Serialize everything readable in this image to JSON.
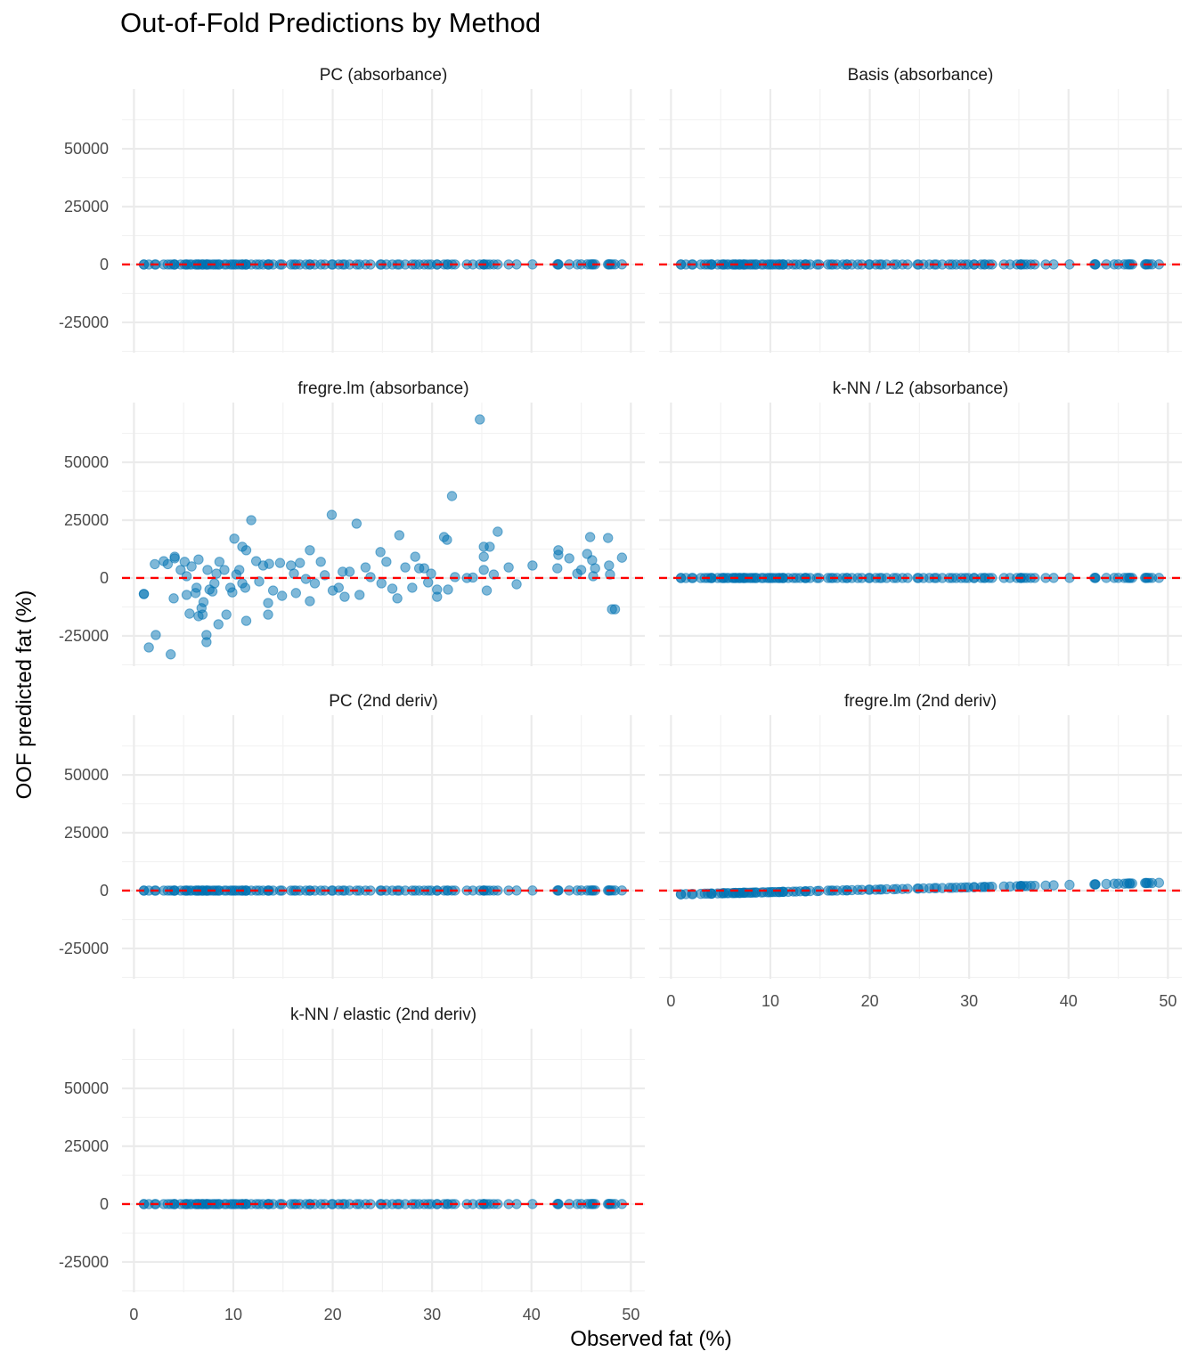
{
  "chart_data": {
    "type": "scatter",
    "title": "Out-of-Fold Predictions by Method",
    "xlabel": "Observed fat (%)",
    "ylabel": "OOF predicted fat (%)",
    "xlim": [
      -1.2,
      51.4
    ],
    "ylim": [
      -38100,
      75800
    ],
    "x_ticks": [
      0,
      10,
      20,
      30,
      40,
      50
    ],
    "y_ticks": [
      -25000,
      0,
      25000,
      50000
    ],
    "y_tick_labels": [
      "-25000",
      "0",
      "25000",
      "50000"
    ],
    "x_tick_labels": [
      "0",
      "10",
      "20",
      "30",
      "40",
      "50"
    ],
    "grid": true,
    "reference_line": {
      "y": 0,
      "color": "#FF0000",
      "style": "dashed"
    },
    "point_color": "#0072B2",
    "observed": [
      1.0,
      1.0,
      1.5,
      2.2,
      3.7,
      2.1,
      3.0,
      3.4,
      4.1,
      4.1,
      4.0,
      4.7,
      5.1,
      5.3,
      5.3,
      5.6,
      5.8,
      6.2,
      6.5,
      6.3,
      6.5,
      6.8,
      6.9,
      7.0,
      7.3,
      7.3,
      7.4,
      7.6,
      7.9,
      8.1,
      8.3,
      8.5,
      8.6,
      9.1,
      9.3,
      9.7,
      9.9,
      10.1,
      10.3,
      10.6,
      10.9,
      11.3,
      11.3,
      10.9,
      11.2,
      11.8,
      12.3,
      12.6,
      13.0,
      13.5,
      13.5,
      13.6,
      14.0,
      14.7,
      14.9,
      15.8,
      16.1,
      16.3,
      16.7,
      17.3,
      17.7,
      17.7,
      18.2,
      18.8,
      19.2,
      19.9,
      20.0,
      20.6,
      21.0,
      21.2,
      21.7,
      22.4,
      22.7,
      23.3,
      23.8,
      24.8,
      24.9,
      25.4,
      26.0,
      26.5,
      26.7,
      27.3,
      28.0,
      28.3,
      28.7,
      29.2,
      29.6,
      29.9,
      30.5,
      30.5,
      31.2,
      31.5,
      31.6,
      32.0,
      32.3,
      33.5,
      34.1,
      34.8,
      35.2,
      35.2,
      35.2,
      35.5,
      35.8,
      36.2,
      36.6,
      37.7,
      38.5,
      40.1,
      42.6,
      42.7,
      42.7,
      43.8,
      44.6,
      45.0,
      45.6,
      45.9,
      46.1,
      46.4,
      46.2,
      47.7,
      47.8,
      47.9,
      48.1,
      48.4,
      49.1
    ],
    "panels": [
      {
        "name": "PC (absorbance)",
        "predicted": [
          1.0,
          1.0,
          1.5,
          2.2,
          3.7,
          2.1,
          3.0,
          3.4,
          4.1,
          4.1,
          4.0,
          4.7,
          5.1,
          5.3,
          5.3,
          5.6,
          5.8,
          6.2,
          6.5,
          6.3,
          6.5,
          6.8,
          6.9,
          7.0,
          7.3,
          7.3,
          7.4,
          7.6,
          7.9,
          8.1,
          8.3,
          8.5,
          8.6,
          9.1,
          9.3,
          9.7,
          9.9,
          10.1,
          10.3,
          10.6,
          10.9,
          11.3,
          11.3,
          10.9,
          11.2,
          11.8,
          12.3,
          12.6,
          13.0,
          13.5,
          13.5,
          13.6,
          14.0,
          14.7,
          14.9,
          15.8,
          16.1,
          16.3,
          16.7,
          17.3,
          17.7,
          17.7,
          18.2,
          18.8,
          19.2,
          19.9,
          20.0,
          20.6,
          21.0,
          21.2,
          21.7,
          22.4,
          22.7,
          23.3,
          23.8,
          24.8,
          24.9,
          25.4,
          26.0,
          26.5,
          26.7,
          27.3,
          28.0,
          28.3,
          28.7,
          29.2,
          29.6,
          29.9,
          30.5,
          30.5,
          31.2,
          31.5,
          31.6,
          32.0,
          32.3,
          33.5,
          34.1,
          34.8,
          35.2,
          35.2,
          35.2,
          35.5,
          35.8,
          36.2,
          36.6,
          37.7,
          38.5,
          40.1,
          42.6,
          42.7,
          42.7,
          43.8,
          44.6,
          45.0,
          45.6,
          45.9,
          46.1,
          46.4,
          46.2,
          47.7,
          47.8,
          47.9,
          48.1,
          48.4,
          49.1
        ]
      },
      {
        "name": "Basis (absorbance)",
        "predicted": [
          1.0,
          1.0,
          1.5,
          2.2,
          3.7,
          2.1,
          3.0,
          3.4,
          4.1,
          4.1,
          4.0,
          4.7,
          5.1,
          5.3,
          5.3,
          5.6,
          5.8,
          6.2,
          6.5,
          6.3,
          6.5,
          6.8,
          6.9,
          7.0,
          7.3,
          7.3,
          7.4,
          7.6,
          7.9,
          8.1,
          8.3,
          8.5,
          8.6,
          9.1,
          9.3,
          9.7,
          9.9,
          10.1,
          10.3,
          10.6,
          10.9,
          11.3,
          11.3,
          10.9,
          11.2,
          11.8,
          12.3,
          12.6,
          13.0,
          13.5,
          13.5,
          13.6,
          14.0,
          14.7,
          14.9,
          15.8,
          16.1,
          16.3,
          16.7,
          17.3,
          17.7,
          17.7,
          18.2,
          18.8,
          19.2,
          19.9,
          20.0,
          20.6,
          21.0,
          21.2,
          21.7,
          22.4,
          22.7,
          23.3,
          23.8,
          24.8,
          24.9,
          25.4,
          26.0,
          26.5,
          26.7,
          27.3,
          28.0,
          28.3,
          28.7,
          29.2,
          29.6,
          29.9,
          30.5,
          30.5,
          31.2,
          31.5,
          31.6,
          32.0,
          32.3,
          33.5,
          34.1,
          34.8,
          35.2,
          35.2,
          35.2,
          35.5,
          35.8,
          36.2,
          36.6,
          37.7,
          38.5,
          40.1,
          42.6,
          42.7,
          42.7,
          43.8,
          44.6,
          45.0,
          45.6,
          45.9,
          46.1,
          46.4,
          46.2,
          47.7,
          47.8,
          47.9,
          48.1,
          48.4,
          49.1
        ]
      },
      {
        "name": "fregre.lm (absorbance)",
        "predicted": [
          -6900,
          -6900,
          -30000,
          -24600,
          -33000,
          6000,
          7300,
          6000,
          9200,
          8500,
          -8800,
          3500,
          7000,
          800,
          -7300,
          -15400,
          5000,
          -6500,
          -16500,
          -4200,
          8000,
          -13000,
          -15800,
          -10400,
          -24600,
          -27700,
          3500,
          -5000,
          -5800,
          -2300,
          1900,
          -20000,
          7000,
          3500,
          -15800,
          -4200,
          -6200,
          17000,
          1500,
          3500,
          13500,
          12000,
          -18500,
          -2300,
          -4200,
          25000,
          7300,
          -1500,
          5400,
          -15800,
          -10800,
          6100,
          -5400,
          6500,
          -7700,
          5400,
          1900,
          -6500,
          6500,
          -400,
          12000,
          -10000,
          -2300,
          7000,
          1200,
          27300,
          -5400,
          -4200,
          2700,
          -8100,
          2700,
          23500,
          -7300,
          4600,
          400,
          11200,
          -2300,
          7000,
          -4600,
          -8800,
          18500,
          4600,
          -4200,
          9200,
          4200,
          4200,
          -1900,
          1900,
          -5000,
          -8100,
          17700,
          16500,
          -5000,
          35400,
          400,
          0,
          200,
          68500,
          13500,
          9200,
          3500,
          -5400,
          13500,
          1500,
          20000,
          4600,
          -2700,
          5400,
          4200,
          12000,
          10000,
          8500,
          1900,
          3500,
          10400,
          17700,
          7700,
          4200,
          800,
          17300,
          5400,
          1500,
          -13500,
          -13500,
          8800
        ]
      },
      {
        "name": "k-NN / L2 (absorbance)",
        "predicted": [
          1.0,
          1.0,
          1.5,
          2.2,
          3.7,
          2.1,
          3.0,
          3.4,
          4.1,
          4.1,
          4.0,
          4.7,
          5.1,
          5.3,
          5.3,
          5.6,
          5.8,
          6.2,
          6.5,
          6.3,
          6.5,
          6.8,
          6.9,
          7.0,
          7.3,
          7.3,
          7.4,
          7.6,
          7.9,
          8.1,
          8.3,
          8.5,
          8.6,
          9.1,
          9.3,
          9.7,
          9.9,
          10.1,
          10.3,
          10.6,
          10.9,
          11.3,
          11.3,
          10.9,
          11.2,
          11.8,
          12.3,
          12.6,
          13.0,
          13.5,
          13.5,
          13.6,
          14.0,
          14.7,
          14.9,
          15.8,
          16.1,
          16.3,
          16.7,
          17.3,
          17.7,
          17.7,
          18.2,
          18.8,
          19.2,
          19.9,
          20.0,
          20.6,
          21.0,
          21.2,
          21.7,
          22.4,
          22.7,
          23.3,
          23.8,
          24.8,
          24.9,
          25.4,
          26.0,
          26.5,
          26.7,
          27.3,
          28.0,
          28.3,
          28.7,
          29.2,
          29.6,
          29.9,
          30.5,
          30.5,
          31.2,
          31.5,
          31.6,
          32.0,
          32.3,
          33.5,
          34.1,
          34.8,
          35.2,
          35.2,
          35.2,
          35.5,
          35.8,
          36.2,
          36.6,
          37.7,
          38.5,
          40.1,
          42.6,
          42.7,
          42.7,
          43.8,
          44.6,
          45.0,
          45.6,
          45.9,
          46.1,
          46.4,
          46.2,
          47.7,
          47.8,
          47.9,
          48.1,
          48.4,
          49.1
        ]
      },
      {
        "name": "PC (2nd deriv)",
        "predicted": [
          1.0,
          1.0,
          1.5,
          2.2,
          3.7,
          2.1,
          3.0,
          3.4,
          4.1,
          4.1,
          4.0,
          4.7,
          5.1,
          5.3,
          5.3,
          5.6,
          5.8,
          6.2,
          6.5,
          6.3,
          6.5,
          6.8,
          6.9,
          7.0,
          7.3,
          7.3,
          7.4,
          7.6,
          7.9,
          8.1,
          8.3,
          8.5,
          8.6,
          9.1,
          9.3,
          9.7,
          9.9,
          10.1,
          10.3,
          10.6,
          10.9,
          11.3,
          11.3,
          10.9,
          11.2,
          11.8,
          12.3,
          12.6,
          13.0,
          13.5,
          13.5,
          13.6,
          14.0,
          14.7,
          14.9,
          15.8,
          16.1,
          16.3,
          16.7,
          17.3,
          17.7,
          17.7,
          18.2,
          18.8,
          19.2,
          19.9,
          20.0,
          20.6,
          21.0,
          21.2,
          21.7,
          22.4,
          22.7,
          23.3,
          23.8,
          24.8,
          24.9,
          25.4,
          26.0,
          26.5,
          26.7,
          27.3,
          28.0,
          28.3,
          28.7,
          29.2,
          29.6,
          29.9,
          30.5,
          30.5,
          31.2,
          31.5,
          31.6,
          32.0,
          32.3,
          33.5,
          34.1,
          34.8,
          35.2,
          35.2,
          35.2,
          35.5,
          35.8,
          36.2,
          36.6,
          37.7,
          38.5,
          40.1,
          42.6,
          42.7,
          42.7,
          43.8,
          44.6,
          45.0,
          45.6,
          45.9,
          46.1,
          46.4,
          46.2,
          47.7,
          47.8,
          47.9,
          48.1,
          48.4,
          49.1
        ]
      },
      {
        "name": "fregre.lm (2nd deriv)",
        "predicted": [
          -1600,
          -1600,
          -1500,
          -1500,
          -1300,
          -1500,
          -1400,
          -1300,
          -1300,
          -1300,
          -1300,
          -1200,
          -1200,
          -1100,
          -1100,
          -1100,
          -1100,
          -1100,
          -1000,
          -1000,
          -1000,
          -1000,
          -1000,
          -1000,
          -900,
          -900,
          -900,
          -900,
          -900,
          -900,
          -800,
          -800,
          -800,
          -800,
          -700,
          -700,
          -700,
          -600,
          -600,
          -600,
          -600,
          -500,
          -500,
          -600,
          -500,
          -500,
          -400,
          -400,
          -300,
          -300,
          -300,
          -300,
          -200,
          -200,
          -100,
          0,
          0,
          0,
          0,
          100,
          100,
          100,
          200,
          300,
          300,
          400,
          400,
          400,
          500,
          500,
          600,
          600,
          700,
          700,
          800,
          900,
          900,
          1000,
          1000,
          1100,
          1100,
          1100,
          1200,
          1200,
          1300,
          1300,
          1400,
          1400,
          1500,
          1500,
          1500,
          1600,
          1600,
          1600,
          1700,
          1800,
          1800,
          1900,
          2000,
          2000,
          2000,
          2000,
          2000,
          2100,
          2100,
          2200,
          2300,
          2500,
          2700,
          2700,
          2700,
          2900,
          3000,
          3000,
          3000,
          3100,
          3100,
          3100,
          3100,
          3300,
          3300,
          3300,
          3300,
          3300,
          3400
        ]
      },
      {
        "name": "k-NN / elastic (2nd deriv)",
        "predicted": [
          1.0,
          1.0,
          1.5,
          2.2,
          3.7,
          2.1,
          3.0,
          3.4,
          4.1,
          4.1,
          4.0,
          4.7,
          5.1,
          5.3,
          5.3,
          5.6,
          5.8,
          6.2,
          6.5,
          6.3,
          6.5,
          6.8,
          6.9,
          7.0,
          7.3,
          7.3,
          7.4,
          7.6,
          7.9,
          8.1,
          8.3,
          8.5,
          8.6,
          9.1,
          9.3,
          9.7,
          9.9,
          10.1,
          10.3,
          10.6,
          10.9,
          11.3,
          11.3,
          10.9,
          11.2,
          11.8,
          12.3,
          12.6,
          13.0,
          13.5,
          13.5,
          13.6,
          14.0,
          14.7,
          14.9,
          15.8,
          16.1,
          16.3,
          16.7,
          17.3,
          17.7,
          17.7,
          18.2,
          18.8,
          19.2,
          19.9,
          20.0,
          20.6,
          21.0,
          21.2,
          21.7,
          22.4,
          22.7,
          23.3,
          23.8,
          24.8,
          24.9,
          25.4,
          26.0,
          26.5,
          26.7,
          27.3,
          28.0,
          28.3,
          28.7,
          29.2,
          29.6,
          29.9,
          30.5,
          30.5,
          31.2,
          31.5,
          31.6,
          32.0,
          32.3,
          33.5,
          34.1,
          34.8,
          35.2,
          35.2,
          35.2,
          35.5,
          35.8,
          36.2,
          36.6,
          37.7,
          38.5,
          40.1,
          42.6,
          42.7,
          42.7,
          43.8,
          44.6,
          45.0,
          45.6,
          45.9,
          46.1,
          46.4,
          46.2,
          47.7,
          47.8,
          47.9,
          48.1,
          48.4,
          49.1
        ]
      }
    ]
  }
}
